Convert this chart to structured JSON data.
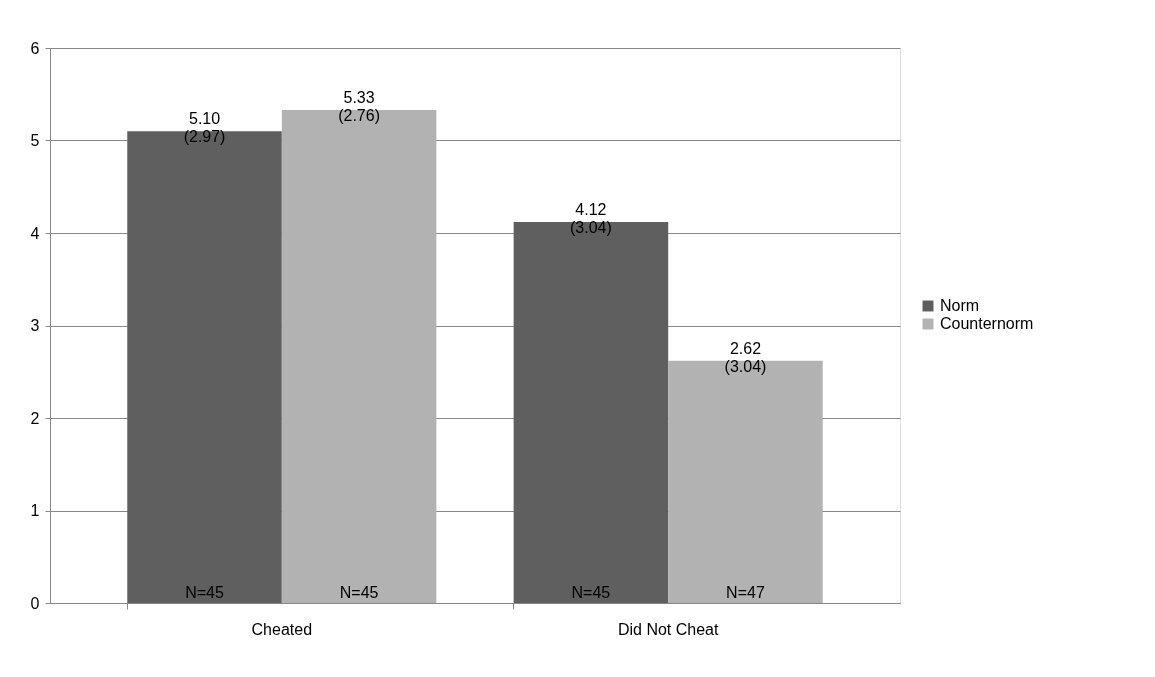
{
  "chart_data": {
    "type": "bar",
    "categories": [
      "Cheated",
      "Did Not Cheat"
    ],
    "series": [
      {
        "name": "Norm",
        "color": "#5f5f5f",
        "values": [
          5.1,
          4.12
        ],
        "value_labels": [
          "5.10\n(2.97)",
          "4.12\n(3.04)"
        ]
      },
      {
        "name": "Counternorm",
        "color": "#b2b2b2",
        "values": [
          5.33,
          2.62
        ],
        "value_labels": [
          "5.33\n(2.76)",
          "2.62\n(3.04)"
        ]
      }
    ],
    "annotations": [
      "N=45",
      "N=45",
      "N=45",
      "N=47"
    ],
    "ylim": [
      0,
      6
    ],
    "yticks": [
      0,
      1,
      2,
      3,
      4,
      5,
      6
    ],
    "grid": "y",
    "legend": "right"
  }
}
